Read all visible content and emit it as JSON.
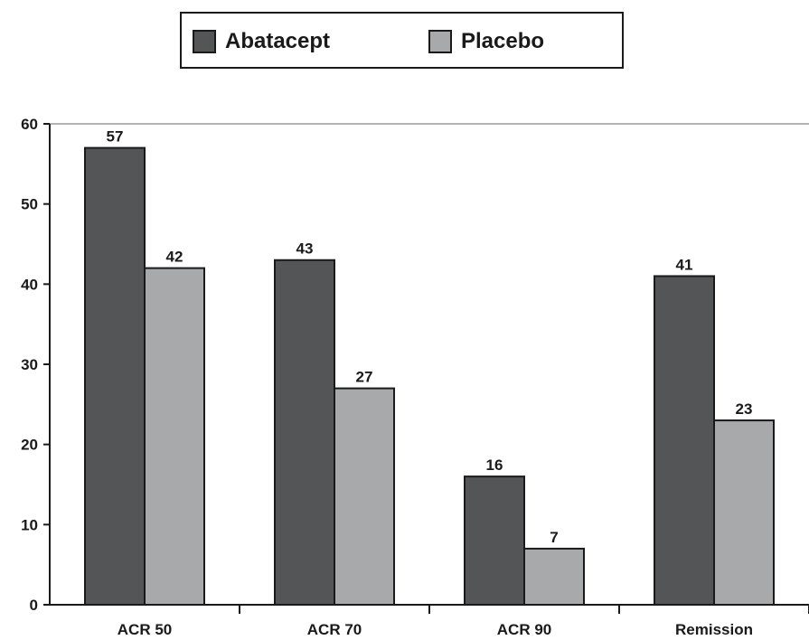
{
  "chart_data": {
    "type": "bar",
    "categories": [
      "ACR 50",
      "ACR 70",
      "ACR 90",
      "Remission"
    ],
    "series": [
      {
        "name": "Abatacept",
        "values": [
          57,
          43,
          16,
          41
        ],
        "color": "#545557"
      },
      {
        "name": "Placebo",
        "values": [
          42,
          27,
          7,
          23
        ],
        "color": "#a8a9ab"
      }
    ],
    "yticks": [
      "0",
      "10",
      "20",
      "30",
      "40",
      "50",
      "60"
    ],
    "ylim": [
      0,
      60
    ],
    "data_labels": {
      "Abatacept": [
        "57",
        "43",
        "16",
        "41"
      ],
      "Placebo": [
        "42",
        "27",
        "7",
        "23"
      ]
    },
    "grid": false,
    "legend_position": "top-center",
    "axis_color": "#1a1a1a",
    "top_line_color": "#9a9a9a"
  }
}
